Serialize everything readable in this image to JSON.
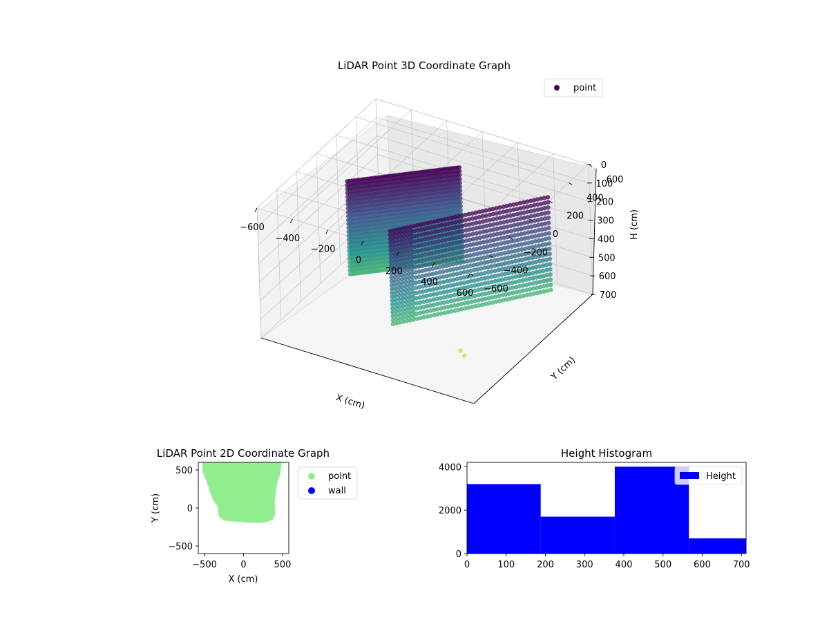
{
  "chart_data": [
    {
      "type": "scatter3d",
      "title": "LiDAR Point 3D Coordinate Graph",
      "xlabel": "X (cm)",
      "ylabel": "Y (cm)",
      "zlabel": "H (cm)",
      "xlim": [
        -600,
        600
      ],
      "ylim": [
        -600,
        600
      ],
      "zlim": [
        0,
        700
      ],
      "z_inverted": true,
      "x_ticks": [
        "−600",
        "−400",
        "−200",
        "0",
        "200",
        "400",
        "600"
      ],
      "y_ticks": [
        "−600",
        "−400",
        "−200",
        "0",
        "200",
        "400",
        "600"
      ],
      "z_ticks": [
        "0",
        "100",
        "200",
        "300",
        "400",
        "500",
        "600",
        "700"
      ],
      "colormap": "viridis",
      "legend": [
        "point"
      ],
      "legend_position": "top-right",
      "grid": true,
      "walls": [
        {
          "name": "left",
          "x": [
            -500,
            -90
          ],
          "y": [
            120,
            520
          ]
        },
        {
          "name": "right",
          "x": [
            -90,
            420
          ],
          "y": [
            -180,
            500
          ]
        }
      ],
      "stray_points": [
        {
          "x": 300,
          "y": -200,
          "h": 700
        },
        {
          "x": 340,
          "y": -230,
          "h": 700
        }
      ]
    },
    {
      "type": "scatter",
      "title": "LiDAR Point 2D Coordinate Graph",
      "xlabel": "X (cm)",
      "ylabel": "Y (cm)",
      "xlim": [
        -580,
        580
      ],
      "ylim": [
        -600,
        600
      ],
      "x_ticks": [
        -500,
        0,
        500
      ],
      "y_ticks": [
        -500,
        0,
        500
      ],
      "legend": [
        {
          "name": "point",
          "color": "#90ee90"
        },
        {
          "name": "wall",
          "color": "#0000ff"
        }
      ],
      "legend_position": "outside-right",
      "point_region": [
        [
          -510,
          600
        ],
        [
          470,
          600
        ],
        [
          455,
          460
        ],
        [
          410,
          310
        ],
        [
          395,
          190
        ],
        [
          380,
          80
        ],
        [
          390,
          -80
        ],
        [
          360,
          -140
        ],
        [
          280,
          -170
        ],
        [
          200,
          -180
        ],
        [
          60,
          -175
        ],
        [
          -240,
          -150
        ],
        [
          -300,
          -100
        ],
        [
          -310,
          20
        ],
        [
          -360,
          90
        ],
        [
          -410,
          200
        ],
        [
          -460,
          360
        ],
        [
          -510,
          490
        ]
      ]
    },
    {
      "type": "bar",
      "title": "Height Histogram",
      "series": [
        {
          "name": "Height",
          "color": "#0000ff"
        }
      ],
      "bins": [
        {
          "start": 0,
          "end": 188,
          "count": 3200
        },
        {
          "start": 188,
          "end": 377,
          "count": 1700
        },
        {
          "start": 377,
          "end": 566,
          "count": 4000
        },
        {
          "start": 566,
          "end": 712,
          "count": 700
        }
      ],
      "xlim": [
        0,
        712
      ],
      "ylim": [
        0,
        4200
      ],
      "x_ticks": [
        0,
        100,
        200,
        300,
        400,
        500,
        600,
        700
      ],
      "y_ticks": [
        0,
        2000,
        4000
      ],
      "legend_position": "top-right"
    }
  ]
}
